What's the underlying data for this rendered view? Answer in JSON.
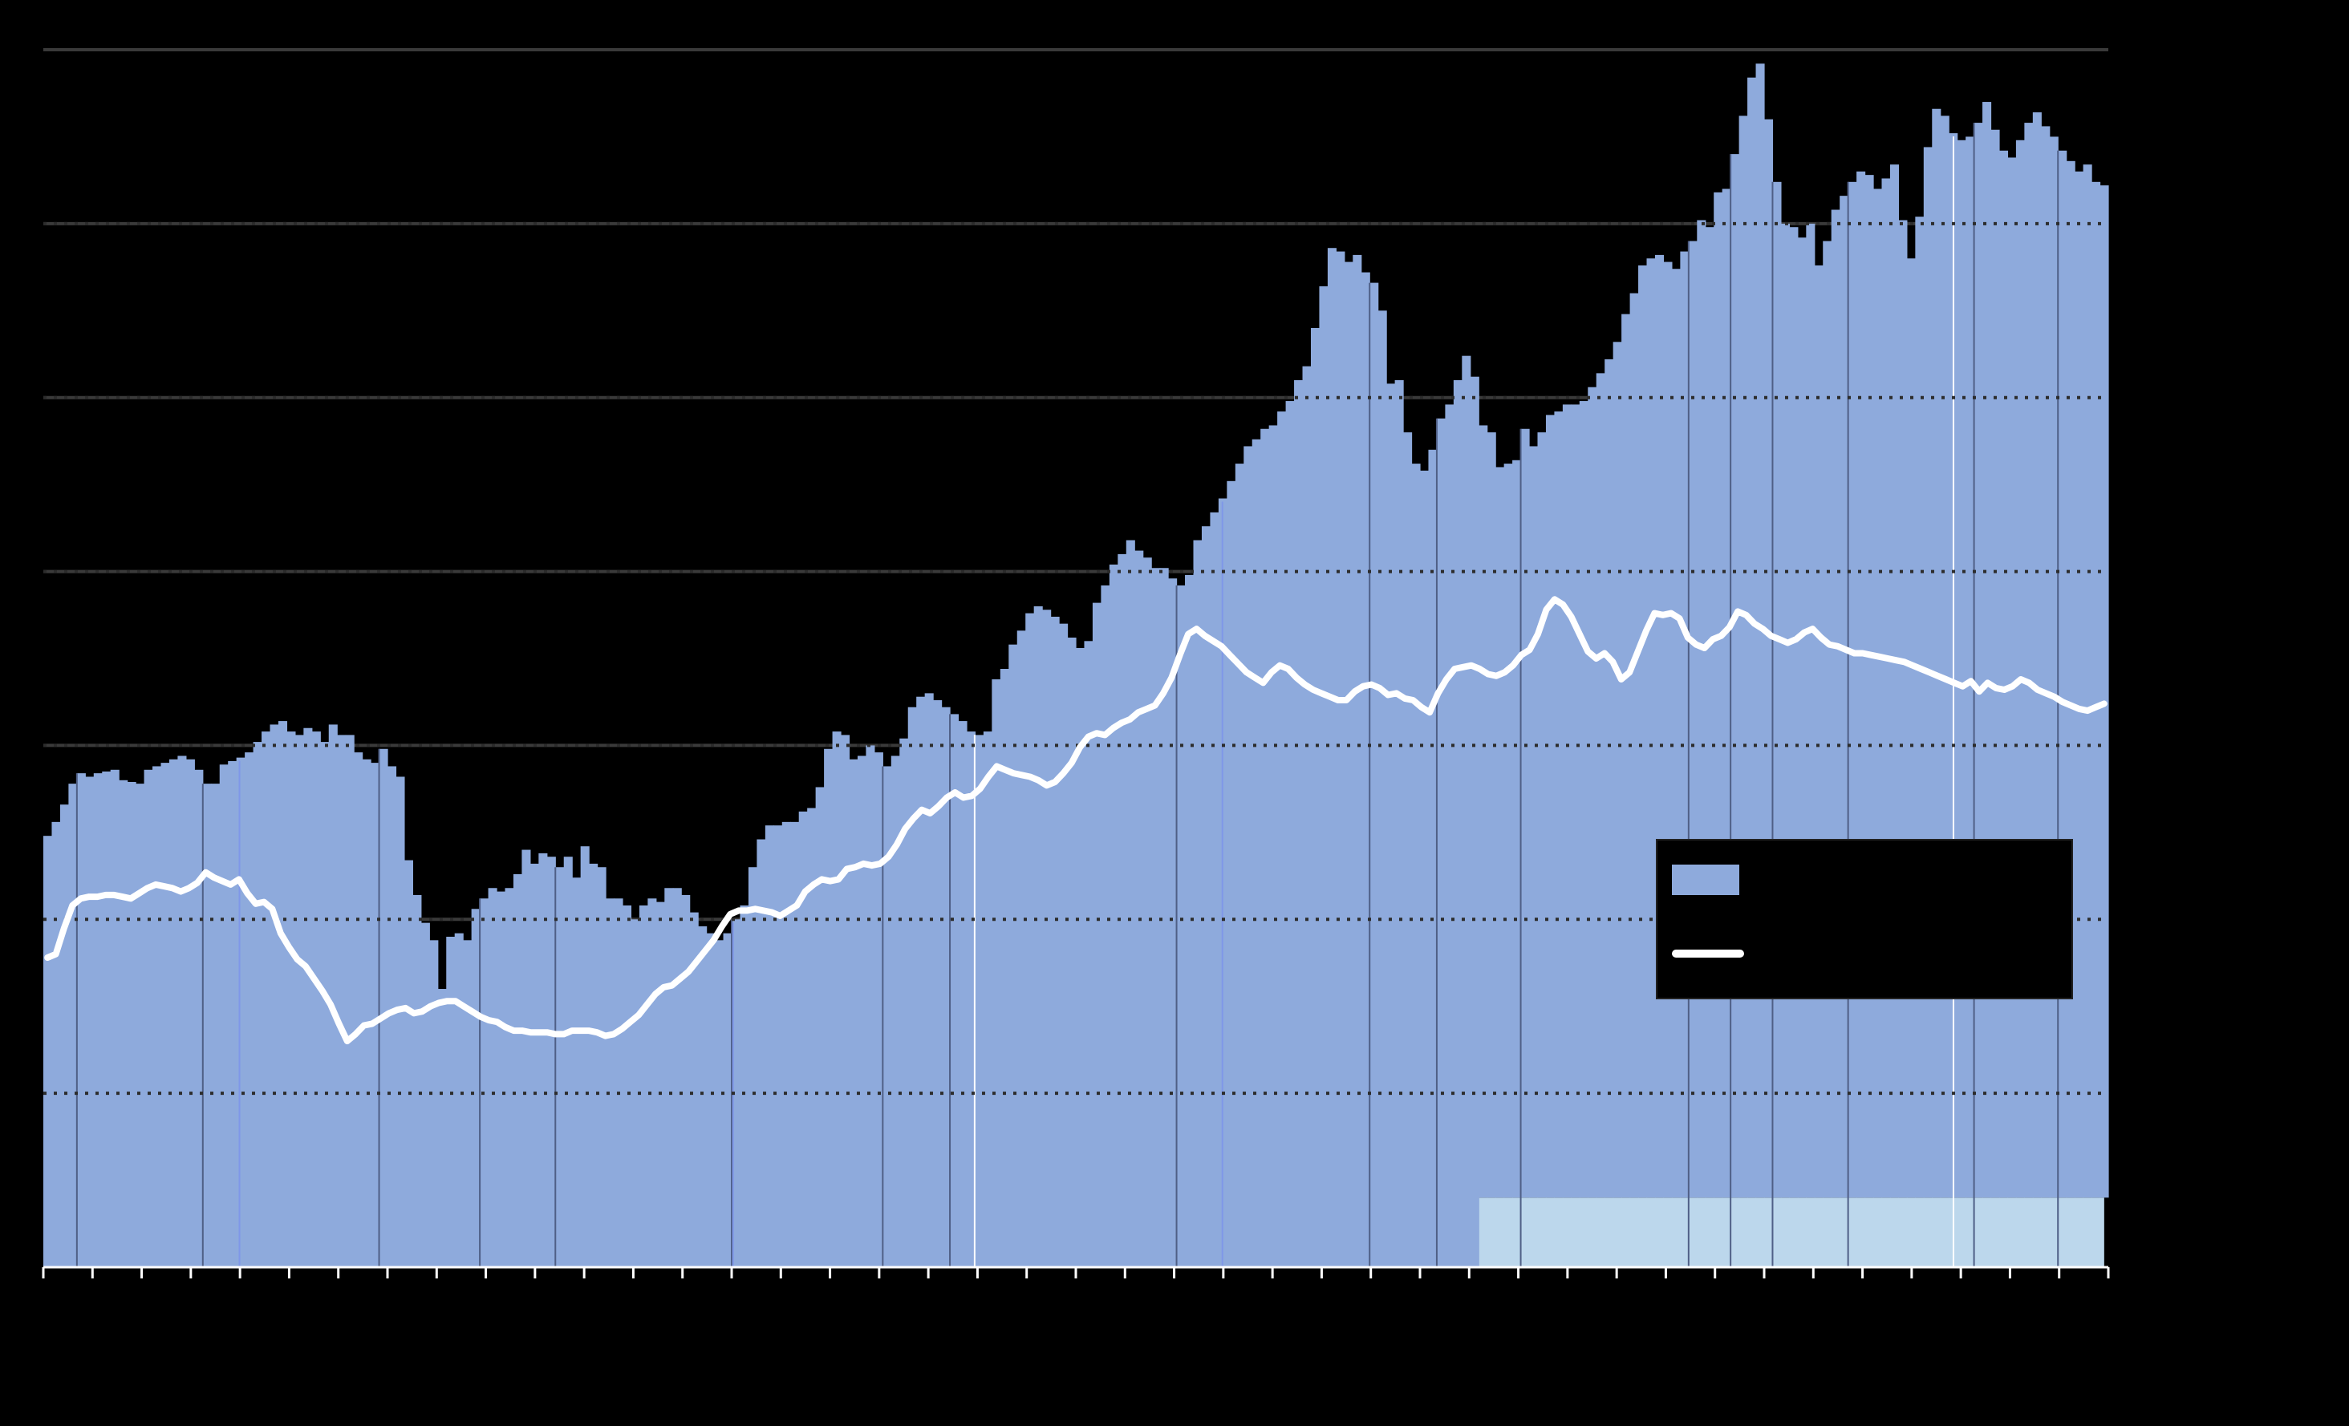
{
  "chart_data": {
    "type": "bar",
    "title": "",
    "xlabel": "",
    "ylabel": "",
    "ylim": [
      0,
      7
    ],
    "grid": true,
    "legend_placement": "right",
    "colors": {
      "background": "#000000",
      "bars": "#8eaadc",
      "line": "#ffffff",
      "band": "#bcd7ec",
      "gridline": "#333333",
      "major_lines": "#3a3a3a",
      "bar_divider": "#4f5f86"
    },
    "bars_series": {
      "name": "",
      "values": [
        2.48,
        2.56,
        2.66,
        2.78,
        2.84,
        2.82,
        2.84,
        2.85,
        2.86,
        2.8,
        2.79,
        2.78,
        2.86,
        2.88,
        2.9,
        2.92,
        2.94,
        2.92,
        2.86,
        2.78,
        2.78,
        2.89,
        2.91,
        2.93,
        2.96,
        3.02,
        3.08,
        3.12,
        3.14,
        3.08,
        3.06,
        3.1,
        3.08,
        3.02,
        3.12,
        3.06,
        3.06,
        2.96,
        2.92,
        2.9,
        2.98,
        2.88,
        2.82,
        2.34,
        2.14,
        1.98,
        1.88,
        1.6,
        1.9,
        1.92,
        1.88,
        2.06,
        2.12,
        2.18,
        2.16,
        2.18,
        2.26,
        2.4,
        2.32,
        2.38,
        2.36,
        2.3,
        2.36,
        2.24,
        2.42,
        2.32,
        2.3,
        2.12,
        2.12,
        2.08,
        2.0,
        2.08,
        2.12,
        2.1,
        2.18,
        2.18,
        2.14,
        2.04,
        1.96,
        1.92,
        1.88,
        1.92,
        2.0,
        2.08,
        2.3,
        2.46,
        2.54,
        2.54,
        2.56,
        2.56,
        2.62,
        2.64,
        2.76,
        2.98,
        3.08,
        3.06,
        2.92,
        2.94,
        3.0,
        2.96,
        2.88,
        2.94,
        3.04,
        3.22,
        3.28,
        3.3,
        3.26,
        3.22,
        3.18,
        3.14,
        3.08,
        3.06,
        3.08,
        3.38,
        3.44,
        3.58,
        3.66,
        3.76,
        3.8,
        3.78,
        3.74,
        3.7,
        3.62,
        3.56,
        3.6,
        3.82,
        3.92,
        4.04,
        4.1,
        4.18,
        4.12,
        4.08,
        4.02,
        4.02,
        3.96,
        3.92,
        3.98,
        4.18,
        4.26,
        4.34,
        4.42,
        4.52,
        4.62,
        4.72,
        4.76,
        4.82,
        4.84,
        4.92,
        4.98,
        5.1,
        5.18,
        5.4,
        5.64,
        5.86,
        5.84,
        5.78,
        5.82,
        5.72,
        5.66,
        5.5,
        5.08,
        5.1,
        4.8,
        4.62,
        4.58,
        4.7,
        4.88,
        4.96,
        5.1,
        5.24,
        5.12,
        4.84,
        4.8,
        4.6,
        4.62,
        4.64,
        4.82,
        4.72,
        4.8,
        4.9,
        4.92,
        4.96,
        4.96,
        4.98,
        5.06,
        5.14,
        5.22,
        5.32,
        5.48,
        5.6,
        5.76,
        5.8,
        5.82,
        5.78,
        5.74,
        5.84,
        5.9,
        6.02,
        5.98,
        6.18,
        6.2,
        6.4,
        6.62,
        6.84,
        6.92,
        6.6,
        6.24,
        6.0,
        5.98,
        5.92,
        6.0,
        5.76,
        5.9,
        6.08,
        6.16,
        6.24,
        6.3,
        6.28,
        6.2,
        6.26,
        6.34,
        6.02,
        5.8,
        6.04,
        6.44,
        6.66,
        6.62,
        6.52,
        6.48,
        6.5,
        6.58,
        6.7,
        6.54,
        6.42,
        6.38,
        6.48,
        6.58,
        6.64,
        6.56,
        6.5,
        6.42,
        6.36,
        6.3,
        6.34,
        6.24,
        6.22
      ],
      "divider_indices": [
        4,
        19,
        40,
        52,
        61,
        82,
        100,
        108,
        135,
        158,
        166,
        176,
        196,
        201,
        206,
        215,
        230,
        240,
        248,
        257,
        267,
        281,
        288,
        305
      ]
    },
    "line_series": {
      "name": "",
      "values": [
        1.78,
        1.8,
        1.95,
        2.08,
        2.12,
        2.13,
        2.13,
        2.14,
        2.14,
        2.13,
        2.12,
        2.15,
        2.18,
        2.2,
        2.19,
        2.18,
        2.16,
        2.18,
        2.21,
        2.27,
        2.24,
        2.22,
        2.2,
        2.23,
        2.15,
        2.09,
        2.1,
        2.06,
        1.92,
        1.84,
        1.77,
        1.73,
        1.66,
        1.59,
        1.51,
        1.4,
        1.3,
        1.34,
        1.39,
        1.4,
        1.43,
        1.46,
        1.48,
        1.49,
        1.46,
        1.47,
        1.5,
        1.52,
        1.53,
        1.53,
        1.5,
        1.47,
        1.44,
        1.42,
        1.41,
        1.38,
        1.36,
        1.36,
        1.35,
        1.35,
        1.35,
        1.34,
        1.34,
        1.36,
        1.36,
        1.36,
        1.35,
        1.33,
        1.34,
        1.37,
        1.41,
        1.45,
        1.51,
        1.57,
        1.61,
        1.62,
        1.66,
        1.7,
        1.76,
        1.82,
        1.88,
        1.96,
        2.03,
        2.05,
        2.05,
        2.06,
        2.05,
        2.04,
        2.02,
        2.05,
        2.08,
        2.16,
        2.2,
        2.23,
        2.22,
        2.23,
        2.29,
        2.3,
        2.32,
        2.31,
        2.32,
        2.36,
        2.43,
        2.52,
        2.58,
        2.63,
        2.61,
        2.65,
        2.7,
        2.73,
        2.7,
        2.71,
        2.75,
        2.82,
        2.88,
        2.86,
        2.84,
        2.83,
        2.82,
        2.8,
        2.77,
        2.79,
        2.84,
        2.9,
        2.99,
        3.05,
        3.07,
        3.06,
        3.1,
        3.13,
        3.15,
        3.19,
        3.21,
        3.23,
        3.3,
        3.39,
        3.52,
        3.64,
        3.67,
        3.63,
        3.6,
        3.57,
        3.52,
        3.47,
        3.42,
        3.39,
        3.36,
        3.42,
        3.46,
        3.44,
        3.39,
        3.35,
        3.32,
        3.3,
        3.28,
        3.26,
        3.26,
        3.31,
        3.34,
        3.35,
        3.33,
        3.29,
        3.3,
        3.27,
        3.26,
        3.22,
        3.19,
        3.3,
        3.38,
        3.44,
        3.45,
        3.46,
        3.44,
        3.41,
        3.4,
        3.42,
        3.46,
        3.52,
        3.55,
        3.64,
        3.78,
        3.84,
        3.81,
        3.74,
        3.64,
        3.54,
        3.5,
        3.53,
        3.48,
        3.38,
        3.42,
        3.54,
        3.66,
        3.76,
        3.75,
        3.76,
        3.73,
        3.62,
        3.58,
        3.56,
        3.61,
        3.63,
        3.68,
        3.77,
        3.75,
        3.7,
        3.67,
        3.63,
        3.61,
        3.59,
        3.61,
        3.65,
        3.67,
        3.62,
        3.58,
        3.57,
        3.55,
        3.53,
        3.53,
        3.52,
        3.51,
        3.5,
        3.49,
        3.48,
        3.46,
        3.44,
        3.42,
        3.4,
        3.38,
        3.36,
        3.34,
        3.37,
        3.31,
        3.36,
        3.33,
        3.32,
        3.34,
        3.38,
        3.36,
        3.32,
        3.3,
        3.28,
        3.25,
        3.23,
        3.21,
        3.2,
        3.22,
        3.24
      ]
    },
    "shaded_region": {
      "x_start_fraction": 0.692,
      "x_end_fraction": 0.998,
      "y_top_value": 0.4
    },
    "vertical_highlights": {
      "white_at_fraction": [
        0.451,
        0.925
      ],
      "blue_at_fraction": [
        0.095,
        0.334,
        0.571
      ]
    },
    "x_tick_count": 43
  },
  "legend": {
    "bars_label": "",
    "line_label": ""
  }
}
